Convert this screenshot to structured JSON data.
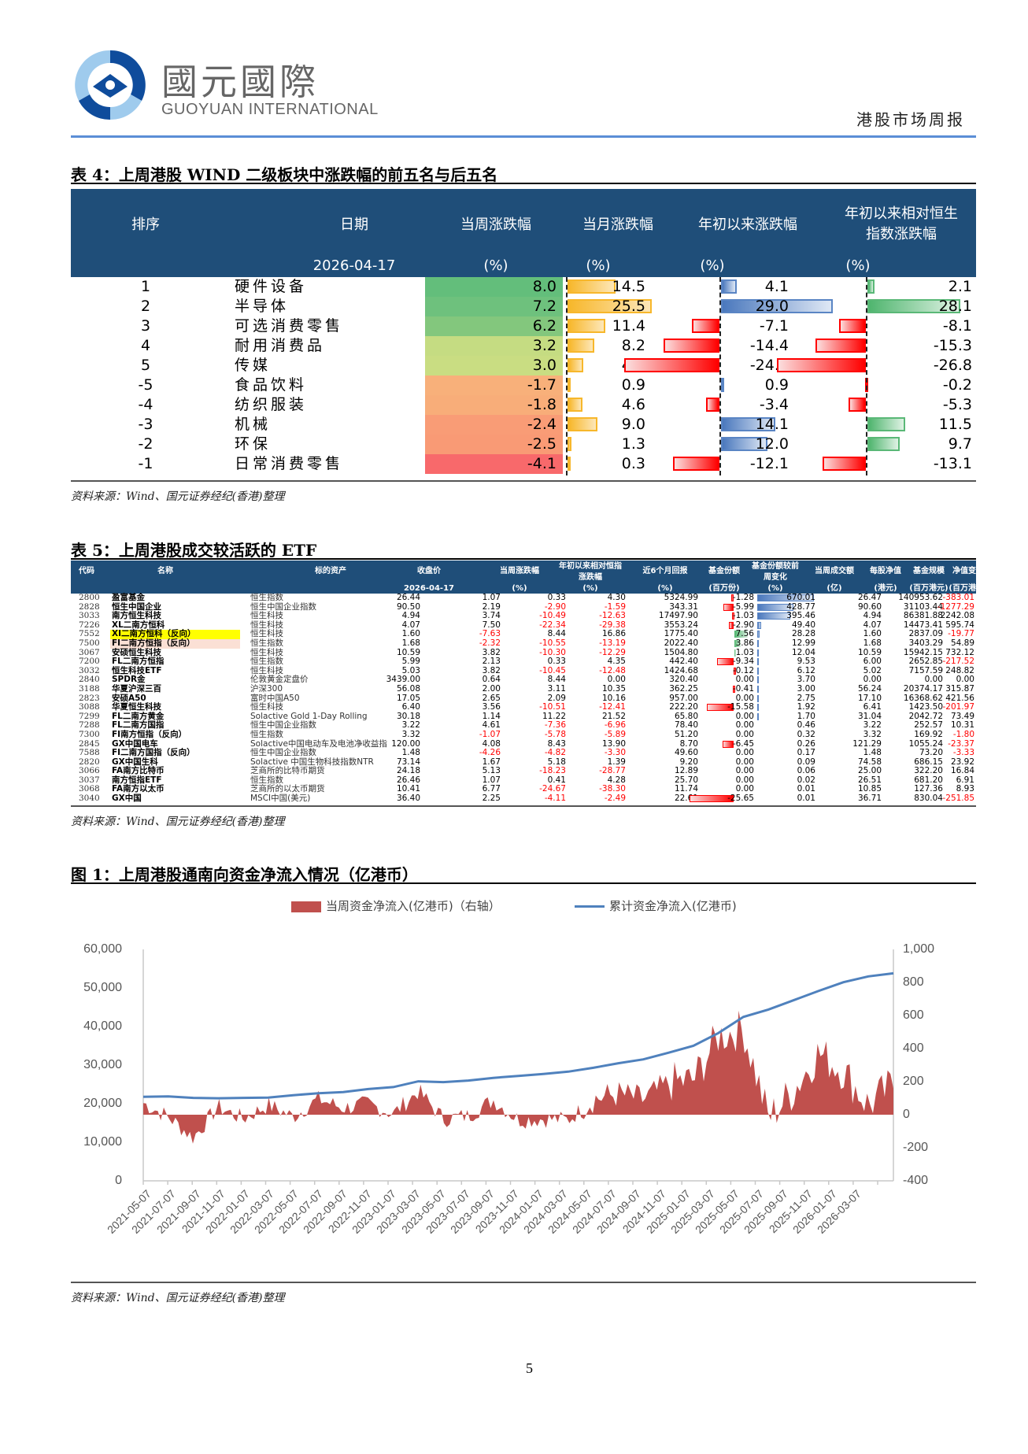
{
  "header": {
    "logo_cn": "國元國際",
    "logo_en": "GUOYUAN INTERNATIONAL",
    "report_name": "港股市场周报",
    "accent_color": "#5b8ed6"
  },
  "table4": {
    "title": "表 4：上周港股 WIND 二级板块中涨跌幅的前五名与后五名",
    "columns": {
      "rank": "排序",
      "date": "日期",
      "date_value": "2026-04-17",
      "week": "当周涨跌幅",
      "month": "当月涨跌幅",
      "ytd": "年初以来涨跌幅",
      "rel_line1": "年初以来相对恒生",
      "rel_line2": "指数涨跌幅",
      "unit": "(%)"
    },
    "rows": [
      {
        "rank": "1",
        "name": "硬件设备",
        "week": "8.0",
        "month": "14.5",
        "ytd": "4.1",
        "rel": "2.1",
        "wk_color": "#63be7b"
      },
      {
        "rank": "2",
        "name": "半导体",
        "week": "7.2",
        "month": "25.5",
        "ytd": "29.0",
        "rel": "28.1",
        "wk_color": "#6ec17d"
      },
      {
        "rank": "3",
        "name": "可选消费零售",
        "week": "6.2",
        "month": "11.4",
        "ytd": "-7.1",
        "rel": "-8.1",
        "wk_color": "#83c77d"
      },
      {
        "rank": "4",
        "name": "耐用消费品",
        "week": "3.2",
        "month": "8.2",
        "ytd": "-14.4",
        "rel": "-15.3",
        "wk_color": "#c5dc82"
      },
      {
        "rank": "5",
        "name": "传媒",
        "week": "3.0",
        "month": "4.7",
        "ytd": "-24.7",
        "rel": "-26.8",
        "wk_color": "#c9dd82"
      },
      {
        "rank": "-5",
        "name": "食品饮料",
        "week": "-1.7",
        "month": "0.9",
        "ytd": "0.9",
        "rel": "-0.2",
        "wk_color": "#f8b07a"
      },
      {
        "rank": "-4",
        "name": "纺织服装",
        "week": "-1.8",
        "month": "4.6",
        "ytd": "-3.4",
        "rel": "-5.3",
        "wk_color": "#f8ad79"
      },
      {
        "rank": "-3",
        "name": "机械",
        "week": "-2.4",
        "month": "9.0",
        "ytd": "14.1",
        "rel": "11.5",
        "wk_color": "#f99c76"
      },
      {
        "rank": "-2",
        "name": "环保",
        "week": "-2.5",
        "month": "1.3",
        "ytd": "12.0",
        "rel": "9.7",
        "wk_color": "#f99a75"
      },
      {
        "rank": "-1",
        "name": "日常消费零售",
        "week": "-4.1",
        "month": "0.3",
        "ytd": "-12.1",
        "rel": "-13.1",
        "wk_color": "#f8696b"
      }
    ],
    "source": "资料来源：Wind、国元证券经纪(香港)整理"
  },
  "table5": {
    "title": "表 5：上周港股成交较活跃的 ETF",
    "columns": {
      "code": "代码",
      "name": "名称",
      "asset": "标的资产",
      "close": "收盘价",
      "close_sub": "2026-04-17",
      "week": "当周涨跌幅",
      "week_sub": "(%)",
      "rel_l1": "年初以来相对恒指",
      "rel_l2": "涨跌幅",
      "rel_sub": "(%)",
      "m6": "近6个月回报",
      "m6_sub": "(%)",
      "shares": "基金份额",
      "shares_sub": "(百万份)",
      "chg_l1": "基金份额较前",
      "chg_l2": "周变化",
      "chg_sub": "(%)",
      "turnover": "当周成交额",
      "turnover_sub": "(亿)",
      "nav": "每股净值",
      "nav_sub": "(港元)",
      "aum": "基金规模",
      "aum_sub": "(百万港元)",
      "navchg": "净值变化",
      "navchg_sub": "(百万港元)"
    },
    "rows": [
      {
        "code": "2800",
        "name": "盈富基金",
        "asset": "恒生指数",
        "close": "26.44",
        "week": "1.07",
        "rel": "0.33",
        "m6": "4.30",
        "shares": "5324.99",
        "chg": "-1.28",
        "turnover": "670.01",
        "nav": "26.47",
        "aum": "140953.62",
        "navchg": "-383.01",
        "hl": ""
      },
      {
        "code": "2828",
        "name": "恒生中国企业",
        "asset": "恒生中国企业指数",
        "close": "90.50",
        "week": "2.19",
        "rel": "-2.90",
        "m6": "-1.59",
        "shares": "343.31",
        "chg": "-5.99",
        "turnover": "428.77",
        "nav": "90.60",
        "aum": "31103.44",
        "navchg": "-1277.29",
        "hl": ""
      },
      {
        "code": "3033",
        "name": "南方恒生科技",
        "asset": "恒生科技",
        "close": "4.94",
        "week": "3.74",
        "rel": "-10.49",
        "m6": "-12.63",
        "shares": "17497.90",
        "chg": "-1.03",
        "turnover": "395.46",
        "nav": "4.94",
        "aum": "86381.88",
        "navchg": "2242.08",
        "hl": ""
      },
      {
        "code": "7226",
        "name": "XL二南方恒科",
        "asset": "恒生科技",
        "close": "4.07",
        "week": "7.50",
        "rel": "-22.34",
        "m6": "-29.38",
        "shares": "3553.24",
        "chg": "-2.90",
        "turnover": "49.40",
        "nav": "4.07",
        "aum": "14473.41",
        "navchg": "595.74",
        "hl": ""
      },
      {
        "code": "7552",
        "name": "XI二南方恒科（反向）",
        "asset": "恒生科技",
        "close": "1.60",
        "week": "-7.63",
        "rel": "8.44",
        "m6": "16.86",
        "shares": "1775.40",
        "chg": "7.56",
        "turnover": "28.28",
        "nav": "1.60",
        "aum": "2837.09",
        "navchg": "-19.77",
        "hl": "yellow"
      },
      {
        "code": "7500",
        "name": "FI二南方恒指（反向）",
        "asset": "恒生指数",
        "close": "1.68",
        "week": "-2.32",
        "rel": "-10.55",
        "m6": "-13.19",
        "shares": "2022.40",
        "chg": "3.86",
        "turnover": "12.99",
        "nav": "1.68",
        "aum": "3403.29",
        "navchg": "54.89",
        "hl": "pink"
      },
      {
        "code": "3067",
        "name": "安硕恒生科技",
        "asset": "恒生科技",
        "close": "10.59",
        "week": "3.82",
        "rel": "-10.30",
        "m6": "-12.29",
        "shares": "1504.80",
        "chg": "1.03",
        "turnover": "12.04",
        "nav": "10.59",
        "aum": "15942.15",
        "navchg": "732.12",
        "hl": ""
      },
      {
        "code": "7200",
        "name": "FL二南方恒指",
        "asset": "恒生指数",
        "close": "5.99",
        "week": "2.13",
        "rel": "0.33",
        "m6": "4.35",
        "shares": "442.40",
        "chg": "-9.34",
        "turnover": "9.53",
        "nav": "6.00",
        "aum": "2652.85",
        "navchg": "-217.52",
        "hl": ""
      },
      {
        "code": "3032",
        "name": "恒生科技ETF",
        "asset": "恒生科技",
        "close": "5.03",
        "week": "3.82",
        "rel": "-10.45",
        "m6": "-12.48",
        "shares": "1424.68",
        "chg": "-0.12",
        "turnover": "6.12",
        "nav": "5.02",
        "aum": "7157.59",
        "navchg": "248.82",
        "hl": ""
      },
      {
        "code": "2840",
        "name": "SPDR金",
        "asset": "伦敦黄金定盘价",
        "close": "3439.00",
        "week": "0.64",
        "rel": "8.44",
        "m6": "0.00",
        "shares": "320.40",
        "chg": "0.00",
        "turnover": "3.70",
        "nav": "0.00",
        "aum": "0.00",
        "navchg": "0.00",
        "hl": ""
      },
      {
        "code": "3188",
        "name": "华夏沪深三百",
        "asset": "沪深300",
        "close": "56.08",
        "week": "2.00",
        "rel": "3.11",
        "m6": "10.35",
        "shares": "362.25",
        "chg": "-0.41",
        "turnover": "3.00",
        "nav": "56.24",
        "aum": "20374.17",
        "navchg": "315.87",
        "hl": ""
      },
      {
        "code": "2823",
        "name": "安硕A50",
        "asset": "富时中国A50",
        "close": "17.05",
        "week": "2.65",
        "rel": "2.09",
        "m6": "10.16",
        "shares": "957.00",
        "chg": "0.00",
        "turnover": "2.75",
        "nav": "17.10",
        "aum": "16368.62",
        "navchg": "421.56",
        "hl": ""
      },
      {
        "code": "3088",
        "name": "华夏恒生科技",
        "asset": "恒生科技",
        "close": "6.40",
        "week": "3.56",
        "rel": "-10.51",
        "m6": "-12.41",
        "shares": "222.20",
        "chg": "-15.58",
        "turnover": "1.92",
        "nav": "6.41",
        "aum": "1423.50",
        "navchg": "-201.97",
        "hl": ""
      },
      {
        "code": "7299",
        "name": "FL二南方黄金",
        "asset": "Solactive Gold 1-Day Rolling",
        "close": "30.18",
        "week": "1.14",
        "rel": "11.22",
        "m6": "21.52",
        "shares": "65.80",
        "chg": "0.00",
        "turnover": "1.70",
        "nav": "31.04",
        "aum": "2042.72",
        "navchg": "73.49",
        "hl": ""
      },
      {
        "code": "7288",
        "name": "FL二南方国指",
        "asset": "恒生中国企业指数",
        "close": "3.22",
        "week": "4.61",
        "rel": "-7.36",
        "m6": "-6.96",
        "shares": "78.40",
        "chg": "0.00",
        "turnover": "0.46",
        "nav": "3.22",
        "aum": "252.57",
        "navchg": "10.31",
        "hl": ""
      },
      {
        "code": "7300",
        "name": "FI南方恒指（反向）",
        "asset": "恒生指数",
        "close": "3.32",
        "week": "-1.07",
        "rel": "-5.78",
        "m6": "-5.89",
        "shares": "51.20",
        "chg": "0.00",
        "turnover": "0.32",
        "nav": "3.32",
        "aum": "169.92",
        "navchg": "-1.80",
        "hl": ""
      },
      {
        "code": "2845",
        "name": "GX中国电车",
        "asset": "Solactive中国电动车及电池净收益指",
        "close": "120.00",
        "week": "4.08",
        "rel": "8.43",
        "m6": "13.90",
        "shares": "8.70",
        "chg": "-6.45",
        "turnover": "0.26",
        "nav": "121.29",
        "aum": "1055.24",
        "navchg": "-23.37",
        "hl": ""
      },
      {
        "code": "7588",
        "name": "FI二南方国指（反向）",
        "asset": "恒生中国企业指数",
        "close": "1.48",
        "week": "-4.26",
        "rel": "-4.82",
        "m6": "-3.30",
        "shares": "49.60",
        "chg": "0.00",
        "turnover": "0.17",
        "nav": "1.48",
        "aum": "73.20",
        "navchg": "-3.33",
        "hl": ""
      },
      {
        "code": "2820",
        "name": "GX中国生科",
        "asset": "Solactive 中国生物科技指数NTR",
        "close": "73.14",
        "week": "1.67",
        "rel": "5.18",
        "m6": "1.39",
        "shares": "9.20",
        "chg": "0.00",
        "turnover": "0.09",
        "nav": "74.58",
        "aum": "686.15",
        "navchg": "23.92",
        "hl": ""
      },
      {
        "code": "3066",
        "name": "FA南方比特币",
        "asset": "芝商所的比特币期货",
        "close": "24.18",
        "week": "5.13",
        "rel": "-18.23",
        "m6": "-28.77",
        "shares": "12.89",
        "chg": "0.00",
        "turnover": "0.06",
        "nav": "25.00",
        "aum": "322.20",
        "navchg": "16.84",
        "hl": ""
      },
      {
        "code": "3037",
        "name": "南方恒指ETF",
        "asset": "恒生指数",
        "close": "26.46",
        "week": "1.07",
        "rel": "0.41",
        "m6": "4.28",
        "shares": "25.70",
        "chg": "0.00",
        "turnover": "0.02",
        "nav": "26.51",
        "aum": "681.20",
        "navchg": "6.91",
        "hl": ""
      },
      {
        "code": "3068",
        "name": "FA南方以太币",
        "asset": "芝商所的以太币期货",
        "close": "10.41",
        "week": "6.77",
        "rel": "-24.67",
        "m6": "-38.30",
        "shares": "11.74",
        "chg": "0.00",
        "turnover": "0.01",
        "nav": "10.85",
        "aum": "127.36",
        "navchg": "8.93",
        "hl": ""
      },
      {
        "code": "3040",
        "name": "GX中国",
        "asset": "MSCI中国(美元)",
        "close": "36.40",
        "week": "2.25",
        "rel": "-4.11",
        "m6": "-2.49",
        "shares": "22.61",
        "chg": "-25.65",
        "turnover": "0.01",
        "nav": "36.71",
        "aum": "830.04",
        "navchg": "-251.85",
        "hl": ""
      }
    ],
    "source": "资料来源：Wind、国元证券经纪(香港)整理"
  },
  "figure1": {
    "title": "图 1：上周港股通南向资金净流入情况（亿港币）",
    "source": "资料来源：Wind、国元证券经纪(香港)整理"
  },
  "chart_data": {
    "type": "area+line",
    "title": "上周港股通南向资金净流入情况（亿港币）",
    "legend": [
      "当周资金净流入(亿港币)（右轴）",
      "累计资金净流入(亿港币)"
    ],
    "legend_position": "top",
    "colors": {
      "bar": "#c0504d",
      "line": "#4f81bd"
    },
    "grid": false,
    "xlabel": "",
    "x_ticks": [
      "2021-05-07",
      "2021-07-07",
      "2021-09-07",
      "2021-11-07",
      "2022-01-07",
      "2022-03-07",
      "2022-05-07",
      "2022-07-07",
      "2022-09-07",
      "2022-11-07",
      "2023-01-07",
      "2023-03-07",
      "2023-05-07",
      "2023-07-07",
      "2023-09-07",
      "2023-11-07",
      "2024-01-07",
      "2024-03-07",
      "2024-05-07",
      "2024-07-07",
      "2024-09-07",
      "2024-11-07",
      "2025-01-07",
      "2025-03-07",
      "2025-05-07",
      "2025-07-07",
      "2025-09-07",
      "2025-11-07",
      "2026-01-07",
      "2026-03-07"
    ],
    "y_left": {
      "label": "累计资金净流入(亿港币)",
      "ticks": [
        "60,000",
        "50,000",
        "40,000",
        "30,000",
        "20,000",
        "10,000",
        "0"
      ],
      "range": [
        0,
        60000
      ]
    },
    "y_right": {
      "label": "当周资金净流入(亿港币)",
      "ticks": [
        "1,000",
        "800",
        "600",
        "400",
        "200",
        "0",
        "-200",
        "-400"
      ],
      "range": [
        -400,
        1000
      ]
    },
    "series": [
      {
        "name": "累计资金净流入(亿港币)",
        "axis": "left",
        "x": [
          "2021-05-07",
          "2021-07-07",
          "2021-09-07",
          "2021-11-07",
          "2022-01-07",
          "2022-03-07",
          "2022-05-07",
          "2022-07-07",
          "2022-09-07",
          "2022-11-07",
          "2023-01-07",
          "2023-03-07",
          "2023-05-07",
          "2023-07-07",
          "2023-09-07",
          "2023-11-07",
          "2024-01-07",
          "2024-03-07",
          "2024-05-07",
          "2024-07-07",
          "2024-09-07",
          "2024-11-07",
          "2025-01-07",
          "2025-03-07",
          "2025-05-07",
          "2025-07-07",
          "2025-09-07",
          "2025-11-07",
          "2026-01-07",
          "2026-03-07",
          "2026-04-17"
        ],
        "values": [
          21800,
          21900,
          21500,
          21400,
          21500,
          21600,
          22200,
          22700,
          23000,
          23800,
          24300,
          25800,
          25600,
          26000,
          26700,
          27200,
          27700,
          28300,
          29300,
          30500,
          31500,
          33200,
          35000,
          38300,
          42500,
          44400,
          46800,
          49200,
          51500,
          53000,
          53800
        ]
      },
      {
        "name": "当周资金净流入(亿港币)",
        "axis": "right",
        "x": [
          "2021-05-07",
          "2021-07-07",
          "2021-09-07",
          "2021-11-07",
          "2022-01-07",
          "2022-03-07",
          "2022-05-07",
          "2022-07-07",
          "2022-09-07",
          "2022-11-07",
          "2023-01-07",
          "2023-03-07",
          "2023-05-07",
          "2023-07-07",
          "2023-09-07",
          "2023-11-07",
          "2024-01-07",
          "2024-03-07",
          "2024-05-07",
          "2024-07-07",
          "2024-09-07",
          "2024-11-07",
          "2025-01-07",
          "2025-03-07",
          "2025-05-07",
          "2025-07-07",
          "2025-09-07",
          "2025-11-07",
          "2026-01-07",
          "2026-03-07",
          "2026-04-17"
        ],
        "values": [
          100,
          -40,
          -250,
          60,
          -60,
          80,
          -40,
          140,
          50,
          90,
          -10,
          220,
          -60,
          -30,
          130,
          -70,
          -60,
          -70,
          130,
          180,
          120,
          280,
          300,
          750,
          820,
          -80,
          200,
          580,
          400,
          50,
          260
        ]
      }
    ]
  },
  "page_number": "5"
}
